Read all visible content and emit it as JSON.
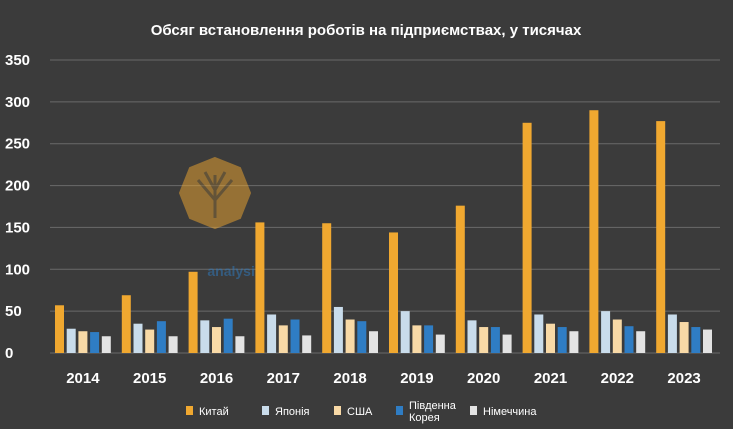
{
  "chart_data": {
    "type": "bar",
    "title": "Обсяг встановлення роботів на підприємствах, у тисячах",
    "xlabel": "",
    "ylabel": "",
    "ylim": [
      0,
      350
    ],
    "yticks": [
      "0",
      "50",
      "100",
      "150",
      "200",
      "250",
      "300",
      "350"
    ],
    "grid": true,
    "legend_position": "bottom",
    "categories": [
      "2014",
      "2015",
      "2016",
      "2017",
      "2018",
      "2019",
      "2020",
      "2021",
      "2022",
      "2023"
    ],
    "series": [
      {
        "name": "Китай",
        "color": "#f0a830",
        "values": [
          57,
          69,
          97,
          156,
          155,
          144,
          176,
          275,
          290,
          277
        ]
      },
      {
        "name": "Японія",
        "color": "#c9dceb",
        "values": [
          29,
          35,
          39,
          46,
          55,
          50,
          39,
          46,
          50,
          46
        ]
      },
      {
        "name": "США",
        "color": "#f8d9a6",
        "values": [
          26,
          28,
          31,
          33,
          40,
          33,
          31,
          35,
          40,
          37
        ]
      },
      {
        "name": "Південна Корея",
        "legend_lines": [
          "Південна",
          "Корея"
        ],
        "color": "#2f7dc4",
        "values": [
          25,
          38,
          41,
          40,
          38,
          33,
          31,
          31,
          32,
          31
        ]
      },
      {
        "name": "Німеччина",
        "color": "#e3e3e3",
        "values": [
          20,
          20,
          20,
          21,
          26,
          22,
          22,
          26,
          26,
          28
        ]
      }
    ]
  },
  "watermark": {
    "text": "analysis",
    "icon": "tree-seal-logo",
    "color": "#f0a830"
  }
}
